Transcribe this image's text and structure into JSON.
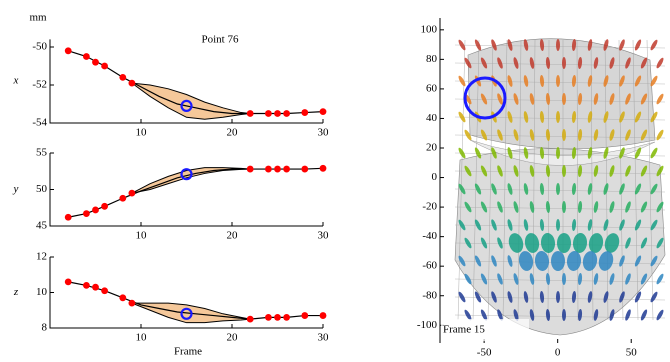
{
  "chart_data": [
    {
      "type": "line",
      "title": "Point 76",
      "y_unit": "mm",
      "ylabel": "x",
      "xlim": [
        0,
        30
      ],
      "xticks": [
        10,
        20,
        30
      ],
      "ylim": [
        -54,
        -49.6
      ],
      "yticks": [
        -54,
        -52,
        -50
      ],
      "line": {
        "color": "#000000",
        "x": [
          2,
          4,
          6,
          8,
          10,
          12,
          14,
          16,
          18,
          20,
          22,
          24,
          26,
          28,
          30
        ],
        "values": [
          -50.2,
          -50.5,
          -51.0,
          -51.6,
          -52.1,
          -52.6,
          -53.0,
          -53.2,
          -53.4,
          -53.5,
          -53.5,
          -53.5,
          -53.5,
          -53.45,
          -53.4
        ]
      },
      "band": {
        "color": "#f5c89a",
        "x": [
          9,
          11,
          13,
          15,
          17,
          19,
          21,
          22
        ],
        "upper": [
          -51.9,
          -52.0,
          -52.2,
          -52.5,
          -52.9,
          -53.2,
          -53.45,
          -53.5
        ],
        "lower": [
          -51.9,
          -52.6,
          -53.2,
          -53.7,
          -53.8,
          -53.7,
          -53.55,
          -53.5
        ]
      },
      "points": {
        "color": "#ff0000",
        "x": [
          2,
          4,
          5,
          6,
          8,
          9,
          22,
          24,
          25,
          26,
          28,
          30
        ],
        "values": [
          -50.2,
          -50.5,
          -50.8,
          -51.0,
          -51.6,
          -51.9,
          -53.5,
          -53.5,
          -53.5,
          -53.5,
          -53.45,
          -53.4
        ]
      },
      "highlight": {
        "color": "#1a1aff",
        "x": 15,
        "value": -53.1
      }
    },
    {
      "type": "line",
      "ylabel": "y",
      "xlim": [
        0,
        30
      ],
      "xticks": [
        10,
        20,
        30
      ],
      "ylim": [
        45,
        55
      ],
      "yticks": [
        45,
        50,
        55
      ],
      "line": {
        "color": "#000000",
        "x": [
          2,
          4,
          6,
          8,
          10,
          12,
          14,
          16,
          18,
          20,
          22,
          24,
          26,
          28,
          30
        ],
        "values": [
          46.2,
          46.7,
          47.7,
          48.8,
          49.8,
          50.7,
          51.6,
          52.2,
          52.6,
          52.8,
          52.8,
          52.8,
          52.8,
          52.8,
          52.9
        ]
      },
      "band": {
        "color": "#f5c89a",
        "x": [
          9,
          11,
          13,
          15,
          17,
          19,
          21,
          22
        ],
        "upper": [
          49.5,
          50.8,
          51.8,
          52.6,
          53.0,
          53.0,
          52.9,
          52.8
        ],
        "lower": [
          49.5,
          50.0,
          50.8,
          51.6,
          52.2,
          52.6,
          52.75,
          52.8
        ]
      },
      "points": {
        "color": "#ff0000",
        "x": [
          2,
          4,
          5,
          6,
          8,
          9,
          22,
          24,
          25,
          26,
          28,
          30
        ],
        "values": [
          46.2,
          46.7,
          47.2,
          47.7,
          48.8,
          49.5,
          52.8,
          52.8,
          52.8,
          52.8,
          52.8,
          52.9
        ]
      },
      "highlight": {
        "color": "#1a1aff",
        "x": 15,
        "value": 52.1
      }
    },
    {
      "type": "line",
      "ylabel": "z",
      "xlabel": "Frame",
      "xlim": [
        0,
        30
      ],
      "xticks": [
        10,
        20,
        30
      ],
      "ylim": [
        8,
        12
      ],
      "yticks": [
        8,
        10,
        12
      ],
      "line": {
        "color": "#000000",
        "x": [
          2,
          4,
          6,
          8,
          10,
          12,
          14,
          16,
          18,
          20,
          22,
          24,
          26,
          28,
          30
        ],
        "values": [
          10.6,
          10.4,
          10.1,
          9.7,
          9.3,
          9.1,
          8.9,
          8.8,
          8.7,
          8.6,
          8.5,
          8.6,
          8.6,
          8.7,
          8.7
        ]
      },
      "band": {
        "color": "#f5c89a",
        "x": [
          9,
          11,
          13,
          15,
          17,
          19,
          21,
          22
        ],
        "upper": [
          9.4,
          9.4,
          9.4,
          9.3,
          9.1,
          8.8,
          8.6,
          8.5
        ],
        "lower": [
          9.4,
          9.0,
          8.6,
          8.3,
          8.3,
          8.4,
          8.45,
          8.5
        ]
      },
      "points": {
        "color": "#ff0000",
        "x": [
          2,
          4,
          5,
          6,
          8,
          9,
          22,
          24,
          25,
          26,
          28,
          30
        ],
        "values": [
          10.6,
          10.4,
          10.3,
          10.1,
          9.7,
          9.4,
          8.5,
          8.6,
          8.6,
          8.6,
          8.7,
          8.7
        ]
      },
      "highlight": {
        "color": "#1a1aff",
        "x": 15,
        "value": 8.8
      }
    },
    {
      "type": "mesh",
      "annotation": "Frame 15",
      "xlim": [
        -80,
        75
      ],
      "xticks": [
        -50,
        0,
        50
      ],
      "ylim": [
        -112,
        108
      ],
      "yticks": [
        100,
        80,
        60,
        40,
        20,
        0,
        -20,
        -40,
        -60,
        -80,
        -100
      ]
    }
  ]
}
